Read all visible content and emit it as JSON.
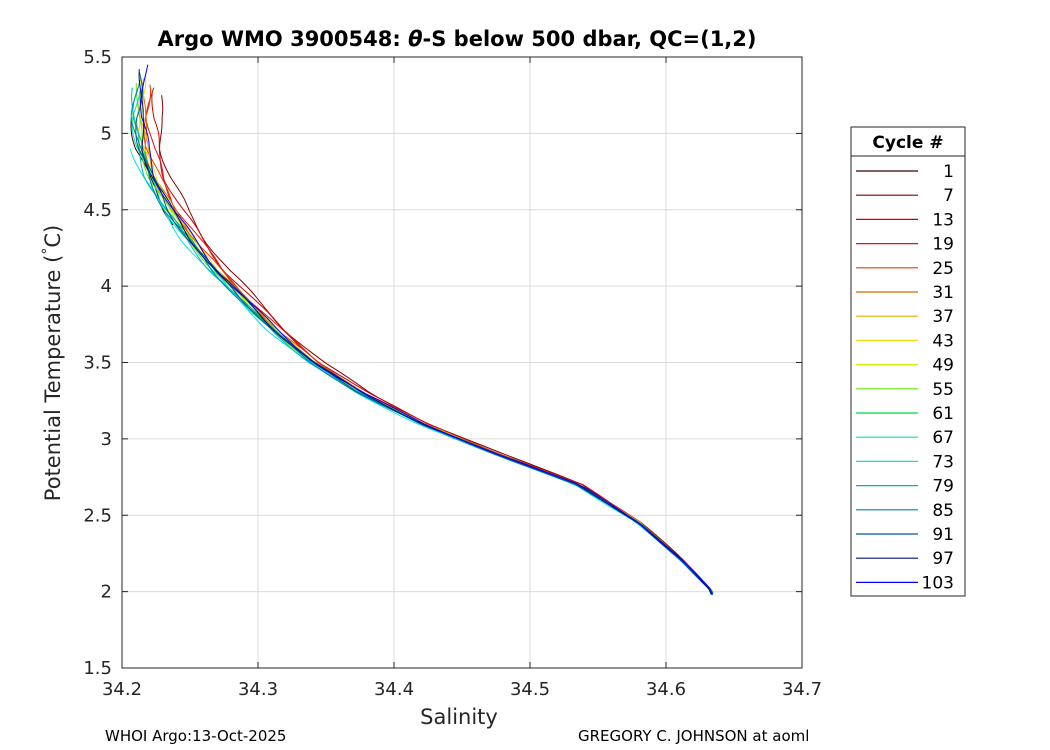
{
  "chart_data": {
    "type": "line",
    "title_prefix": "Argo WMO 3900548: ",
    "title_symbol": "θ",
    "title_suffix": "-S below 500 dbar,  QC=(1,2)",
    "xlabel": "Salinity",
    "ylabel_prefix": "Potential Temperature (",
    "ylabel_degree": "°",
    "ylabel_suffix": "C)",
    "xlim": [
      34.2,
      34.7
    ],
    "ylim": [
      1.5,
      5.5
    ],
    "xticks": [
      "34.2",
      "34.3",
      "34.4",
      "34.5",
      "34.6",
      "34.7"
    ],
    "yticks": [
      "1.5",
      "2",
      "2.5",
      "3",
      "3.5",
      "4",
      "4.5",
      "5",
      "5.5"
    ],
    "grid": true,
    "legend": {
      "title": "Cycle #",
      "placement": "outside-right",
      "entries": [
        {
          "label": "1",
          "color": "#3a0000"
        },
        {
          "label": "7",
          "color": "#8a0000"
        },
        {
          "label": "13",
          "color": "#cc0000"
        },
        {
          "label": "19",
          "color": "#e61010"
        },
        {
          "label": "25",
          "color": "#e63a00"
        },
        {
          "label": "31",
          "color": "#d96a00"
        },
        {
          "label": "37",
          "color": "#e6b000"
        },
        {
          "label": "43",
          "color": "#f0e000"
        },
        {
          "label": "49",
          "color": "#c8f000"
        },
        {
          "label": "55",
          "color": "#66e600"
        },
        {
          "label": "61",
          "color": "#00d640"
        },
        {
          "label": "67",
          "color": "#00e6a0"
        },
        {
          "label": "73",
          "color": "#00e6e6"
        },
        {
          "label": "79",
          "color": "#00b4c8"
        },
        {
          "label": "85",
          "color": "#0082b4"
        },
        {
          "label": "91",
          "color": "#005a96"
        },
        {
          "label": "97",
          "color": "#00146e"
        },
        {
          "label": "103",
          "color": "#0000ff"
        }
      ]
    },
    "reference_profile": [
      [
        34.213,
        5.3
      ],
      [
        34.211,
        5.1
      ],
      [
        34.214,
        4.9
      ],
      [
        34.222,
        4.7
      ],
      [
        34.234,
        4.5
      ],
      [
        34.25,
        4.3
      ],
      [
        34.268,
        4.1
      ],
      [
        34.29,
        3.9
      ],
      [
        34.313,
        3.7
      ],
      [
        34.34,
        3.5
      ],
      [
        34.375,
        3.3
      ],
      [
        34.42,
        3.1
      ],
      [
        34.475,
        2.9
      ],
      [
        34.535,
        2.7
      ],
      [
        34.58,
        2.45
      ],
      [
        34.612,
        2.2
      ],
      [
        34.634,
        2.0
      ]
    ],
    "series": [
      {
        "label": "1",
        "ds": -0.003,
        "t_max": 5.1,
        "t_min": 4.4
      },
      {
        "label": "7",
        "ds": 0.016,
        "t_max": 5.25,
        "t_min": 2.02
      },
      {
        "label": "13",
        "ds": 0.012,
        "t_max": 5.28,
        "t_min": 2.01
      },
      {
        "label": "19",
        "ds": 0.009,
        "t_max": 5.3,
        "t_min": 2.02
      },
      {
        "label": "25",
        "ds": 0.006,
        "t_max": 5.32,
        "t_min": 2.01
      },
      {
        "label": "31",
        "ds": 0.004,
        "t_max": 5.33,
        "t_min": 2.0
      },
      {
        "label": "37",
        "ds": 0.003,
        "t_max": 5.36,
        "t_min": 2.0
      },
      {
        "label": "43",
        "ds": 0.002,
        "t_max": 5.38,
        "t_min": 2.0
      },
      {
        "label": "49",
        "ds": 0.001,
        "t_max": 5.36,
        "t_min": 2.0
      },
      {
        "label": "55",
        "ds": 0.0,
        "t_max": 5.33,
        "t_min": 1.99
      },
      {
        "label": "61",
        "ds": -0.001,
        "t_max": 5.3,
        "t_min": 1.99
      },
      {
        "label": "67",
        "ds": -0.002,
        "t_max": 5.28,
        "t_min": 1.99
      },
      {
        "label": "73",
        "ds": -0.006,
        "t_max": 4.9,
        "t_min": 1.99
      },
      {
        "label": "79",
        "ds": -0.003,
        "t_max": 5.3,
        "t_min": 1.99
      },
      {
        "label": "85",
        "ds": -0.002,
        "t_max": 5.35,
        "t_min": 1.99
      },
      {
        "label": "91",
        "ds": 0.0,
        "t_max": 5.4,
        "t_min": 1.98
      },
      {
        "label": "97",
        "ds": 0.002,
        "t_max": 5.42,
        "t_min": 1.98
      },
      {
        "label": "103",
        "ds": 0.004,
        "t_max": 5.45,
        "t_min": 1.98
      }
    ]
  },
  "footer": {
    "left": "WHOI Argo:13-Oct-2025",
    "right": "GREGORY C. JOHNSON at aoml"
  }
}
